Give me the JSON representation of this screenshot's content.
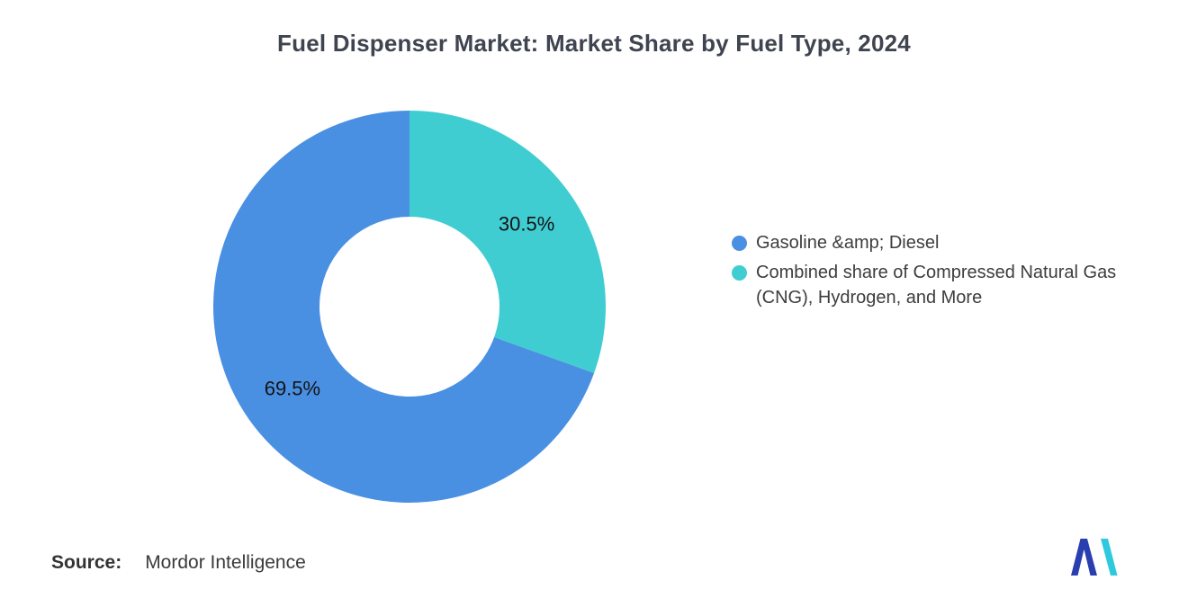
{
  "title": "Fuel Dispenser Market: Market Share by Fuel Type, 2024",
  "chart_data": {
    "type": "pie",
    "subtype": "donut",
    "title": "Fuel Dispenser Market: Market Share by Fuel Type, 2024",
    "unit": "%",
    "rotation_deg": 109.8,
    "inner_radius_ratio": 0.46,
    "legend_position": "right",
    "slices": [
      {
        "label": "Gasoline &amp; Diesel",
        "value": 69.5,
        "data_label": "69.5%",
        "color": "#4A90E2"
      },
      {
        "label": "Combined share of Compressed Natural Gas (CNG), Hydrogen, and More",
        "value": 30.5,
        "data_label": "30.5%",
        "color": "#40CDD2"
      }
    ]
  },
  "source": {
    "label": "Source:",
    "value": "Mordor Intelligence"
  },
  "logo": {
    "name": "Mordor Intelligence monogram",
    "blue": "#2A3FAF",
    "teal": "#2EC9DC"
  }
}
